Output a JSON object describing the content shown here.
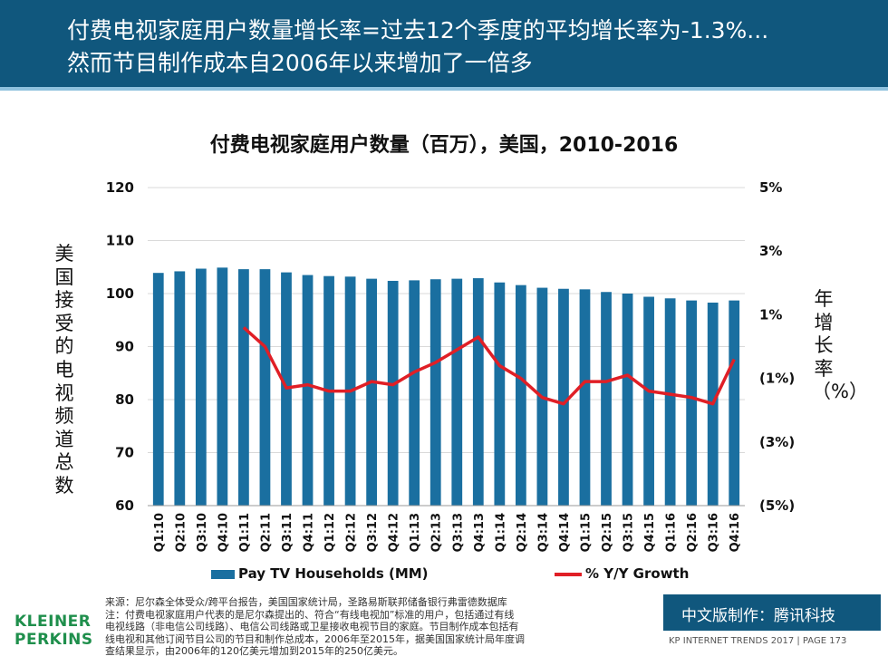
{
  "header": {
    "line1": "付费电视家庭用户数量增长率=过去12个季度的平均增长率为-1.3%...",
    "line2": "然而节目制作成本自2006年以来增加了一倍多"
  },
  "chart_data": {
    "type": "bar",
    "title": "付费电视家庭用户数量（百万），美国，2010-2016",
    "ylabel": "美国接受的电视频道总数",
    "y2label": "年增长率（%）",
    "ylim": [
      60,
      120
    ],
    "yticks": [
      "120",
      "110",
      "100",
      "90",
      "80",
      "70",
      "60"
    ],
    "y2lim": [
      -5,
      5
    ],
    "y2ticks": [
      "5%",
      "3%",
      "1%",
      "(1%)",
      "(3%)",
      "(5%)"
    ],
    "categories": [
      "Q1:10",
      "Q2:10",
      "Q3:10",
      "Q4:10",
      "Q1:11",
      "Q2:11",
      "Q3:11",
      "Q4:11",
      "Q1:12",
      "Q2:12",
      "Q3:12",
      "Q4:12",
      "Q1:13",
      "Q2:13",
      "Q3:13",
      "Q4:13",
      "Q1:14",
      "Q2:14",
      "Q3:14",
      "Q4:14",
      "Q1:15",
      "Q2:15",
      "Q3:15",
      "Q4:15",
      "Q1:16",
      "Q2:16",
      "Q3:16",
      "Q4:16"
    ],
    "series": [
      {
        "name": "Pay TV Households (MM)",
        "kind": "bar",
        "axis": "left",
        "color": "#1a6fa0",
        "values": [
          103.9,
          104.2,
          104.7,
          104.9,
          104.6,
          104.6,
          104.0,
          103.5,
          103.3,
          103.2,
          102.8,
          102.4,
          102.5,
          102.7,
          102.8,
          102.9,
          102.1,
          101.6,
          101.1,
          100.9,
          100.8,
          100.3,
          100.0,
          99.4,
          99.1,
          98.7,
          98.3,
          98.7
        ]
      },
      {
        "name": "% Y/Y Growth",
        "kind": "line",
        "axis": "right",
        "color": "#e01f26",
        "values": [
          null,
          null,
          null,
          null,
          0.6,
          0.0,
          -1.3,
          -1.2,
          -1.4,
          -1.4,
          -1.1,
          -1.2,
          -0.8,
          -0.5,
          -0.1,
          0.3,
          -0.6,
          -1.0,
          -1.6,
          -1.8,
          -1.1,
          -1.1,
          -0.9,
          -1.4,
          -1.5,
          -1.6,
          -1.8,
          -0.4
        ]
      }
    ]
  },
  "footer": {
    "source_lines": [
      "来源：尼尔森全体受众/跨平台报告，美国国家统计局，圣路易斯联邦储备银行弗雷德数据库",
      "注：付费电视家庭用户代表的是尼尔森提出的、符合“有线电视加”标准的用户，包括通过有线",
      "电视线路（非电信公司线路）、电信公司线路或卫星接收电视节目的家庭。节目制作成本包括有",
      "线电视和其他订阅节目公司的节目和制作总成本，2006年至2015年，据美国国家统计局年度调",
      "查结果显示，由2006年的120亿美元增加到2015年的250亿美元。"
    ],
    "kleiner_line1": "KLEINER",
    "kleiner_line2": "PERKINS",
    "badge": "中文版制作：腾讯科技",
    "page_info": "KP INTERNET TRENDS 2017  |  PAGE 173"
  }
}
